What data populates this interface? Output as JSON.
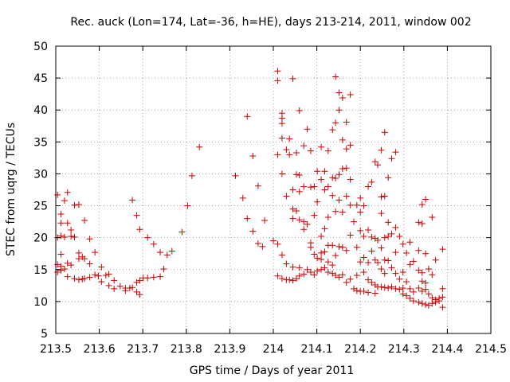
{
  "chart_data": {
    "type": "scatter",
    "title": "Rec. auck (Lon=174, Lat=-36, h=HE), days 213-214, 2011, window 002",
    "xlabel": "GPS time / Days of year 2011",
    "ylabel": "STEC from uqrg / TECUs",
    "xlim": [
      213.5,
      214.5
    ],
    "ylim": [
      5,
      50
    ],
    "x_ticks": [
      213.5,
      213.6,
      213.7,
      213.8,
      213.9,
      214.0,
      214.1,
      214.2,
      214.3,
      214.4,
      214.5
    ],
    "x_tick_labels": [
      "213.5",
      "213.6",
      "213.7",
      "213.8",
      "213.9",
      "214",
      "214.1",
      "214.2",
      "214.3",
      "214.4",
      "214.5"
    ],
    "y_ticks": [
      5,
      10,
      15,
      20,
      25,
      30,
      35,
      40,
      45,
      50
    ],
    "y_tick_labels": [
      "5",
      "10",
      "15",
      "20",
      "25",
      "30",
      "35",
      "40",
      "45",
      "50"
    ],
    "grid": true,
    "marker": "plus",
    "color": "#cc0000",
    "series": [
      {
        "points": [
          [
            213.504,
            26.7
          ],
          [
            213.504,
            20.0
          ],
          [
            213.504,
            15.8
          ],
          [
            213.504,
            14.6
          ],
          [
            213.512,
            23.7
          ],
          [
            213.512,
            22.3
          ],
          [
            213.512,
            20.3
          ],
          [
            213.512,
            17.4
          ],
          [
            213.512,
            15.5
          ],
          [
            213.512,
            14.9
          ],
          [
            213.52,
            25.8
          ],
          [
            213.52,
            20.1
          ],
          [
            213.52,
            15.1
          ],
          [
            213.527,
            27.1
          ],
          [
            213.527,
            22.3
          ],
          [
            213.527,
            16.0
          ],
          [
            213.527,
            13.9
          ],
          [
            213.535,
            21.2
          ],
          [
            213.535,
            20.2
          ],
          [
            213.535,
            15.7
          ],
          [
            213.543,
            25.1
          ],
          [
            213.543,
            20.1
          ],
          [
            213.543,
            13.6
          ],
          [
            213.553,
            25.2
          ],
          [
            213.553,
            17.6
          ],
          [
            213.553,
            16.7
          ],
          [
            213.553,
            13.4
          ],
          [
            213.561,
            17.0
          ],
          [
            213.561,
            13.5
          ],
          [
            213.566,
            22.7
          ],
          [
            213.566,
            16.7
          ],
          [
            213.566,
            13.6
          ],
          [
            213.578,
            19.8
          ],
          [
            213.578,
            15.9
          ],
          [
            213.578,
            13.8
          ],
          [
            213.59,
            17.7
          ],
          [
            213.59,
            14.2
          ],
          [
            213.598,
            14.0
          ],
          [
            213.605,
            15.4
          ],
          [
            213.605,
            13.1
          ],
          [
            213.615,
            14.1
          ],
          [
            213.622,
            14.3
          ],
          [
            213.622,
            12.5
          ],
          [
            213.634,
            13.3
          ],
          [
            213.634,
            12.0
          ],
          [
            213.648,
            12.4
          ],
          [
            213.66,
            12.1
          ],
          [
            213.66,
            11.7
          ],
          [
            213.67,
            12.1
          ],
          [
            213.676,
            25.9
          ],
          [
            213.676,
            12.2
          ],
          [
            213.686,
            23.5
          ],
          [
            213.686,
            13.0
          ],
          [
            213.686,
            11.5
          ],
          [
            213.693,
            21.3
          ],
          [
            213.693,
            13.3
          ],
          [
            213.693,
            11.1
          ],
          [
            213.701,
            13.7
          ],
          [
            213.711,
            20.0
          ],
          [
            213.711,
            13.7
          ],
          [
            213.725,
            19.0
          ],
          [
            213.725,
            13.8
          ],
          [
            213.74,
            17.7
          ],
          [
            213.74,
            13.9
          ],
          [
            213.748,
            15.1
          ],
          [
            213.756,
            17.3
          ],
          [
            213.767,
            17.9
          ],
          [
            213.79,
            20.9
          ],
          [
            213.803,
            25.0
          ],
          [
            213.813,
            29.7
          ],
          [
            213.83,
            34.2
          ],
          [
            213.913,
            29.7
          ],
          [
            213.93,
            26.2
          ],
          [
            213.94,
            39.0
          ],
          [
            213.94,
            23.0
          ],
          [
            213.953,
            32.8
          ],
          [
            213.953,
            21.0
          ],
          [
            213.965,
            28.1
          ],
          [
            213.965,
            19.1
          ],
          [
            213.975,
            18.6
          ],
          [
            213.98,
            22.7
          ],
          [
            214.0,
            19.5
          ],
          [
            214.01,
            46.1
          ],
          [
            214.01,
            44.6
          ],
          [
            214.01,
            33.0
          ],
          [
            214.01,
            19.0
          ],
          [
            214.01,
            14.0
          ],
          [
            214.02,
            39.5
          ],
          [
            214.02,
            38.7
          ],
          [
            214.02,
            37.9
          ],
          [
            214.02,
            35.6
          ],
          [
            214.02,
            30.0
          ],
          [
            214.02,
            17.3
          ],
          [
            214.02,
            13.6
          ],
          [
            214.03,
            33.8
          ],
          [
            214.03,
            26.5
          ],
          [
            214.03,
            15.9
          ],
          [
            214.03,
            13.4
          ],
          [
            214.037,
            35.5
          ],
          [
            214.037,
            33.0
          ],
          [
            214.037,
            13.4
          ],
          [
            214.045,
            44.9
          ],
          [
            214.045,
            27.5
          ],
          [
            214.045,
            24.5
          ],
          [
            214.045,
            23.0
          ],
          [
            214.045,
            15.4
          ],
          [
            214.045,
            13.3
          ],
          [
            214.053,
            33.3
          ],
          [
            214.053,
            29.9
          ],
          [
            214.053,
            24.2
          ],
          [
            214.053,
            13.6
          ],
          [
            214.06,
            39.9
          ],
          [
            214.06,
            29.8
          ],
          [
            214.06,
            27.2
          ],
          [
            214.06,
            22.8
          ],
          [
            214.06,
            15.3
          ],
          [
            214.06,
            14.0
          ],
          [
            214.07,
            34.4
          ],
          [
            214.07,
            28.0
          ],
          [
            214.07,
            22.5
          ],
          [
            214.07,
            21.3
          ],
          [
            214.07,
            14.3
          ],
          [
            214.078,
            37.0
          ],
          [
            214.078,
            22.1
          ],
          [
            214.078,
            15.0
          ],
          [
            214.086,
            33.6
          ],
          [
            214.086,
            27.9
          ],
          [
            214.086,
            19.2
          ],
          [
            214.086,
            18.5
          ],
          [
            214.086,
            14.6
          ],
          [
            214.094,
            28.0
          ],
          [
            214.094,
            23.5
          ],
          [
            214.094,
            17.4
          ],
          [
            214.094,
            14.2
          ],
          [
            214.101,
            30.4
          ],
          [
            214.101,
            25.6
          ],
          [
            214.101,
            16.8
          ],
          [
            214.101,
            14.8
          ],
          [
            214.11,
            34.2
          ],
          [
            214.11,
            29.1
          ],
          [
            214.11,
            20.2
          ],
          [
            214.11,
            17.6
          ],
          [
            214.11,
            16.6
          ],
          [
            214.11,
            15.0
          ],
          [
            214.118,
            30.4
          ],
          [
            214.118,
            27.5
          ],
          [
            214.118,
            21.4
          ],
          [
            214.118,
            17.8
          ],
          [
            214.118,
            15.3
          ],
          [
            214.126,
            33.6
          ],
          [
            214.126,
            28.0
          ],
          [
            214.126,
            23.2
          ],
          [
            214.126,
            18.8
          ],
          [
            214.126,
            16.2
          ],
          [
            214.126,
            14.6
          ],
          [
            214.136,
            36.9
          ],
          [
            214.136,
            29.4
          ],
          [
            214.136,
            26.6
          ],
          [
            214.136,
            18.8
          ],
          [
            214.136,
            15.7
          ],
          [
            214.136,
            14.4
          ],
          [
            214.143,
            45.2
          ],
          [
            214.143,
            38.0
          ],
          [
            214.143,
            29.3
          ],
          [
            214.143,
            24.1
          ],
          [
            214.143,
            17.2
          ],
          [
            214.143,
            14.1
          ],
          [
            214.151,
            42.7
          ],
          [
            214.151,
            40.0
          ],
          [
            214.151,
            29.9
          ],
          [
            214.151,
            25.9
          ],
          [
            214.151,
            18.6
          ],
          [
            214.151,
            13.8
          ],
          [
            214.159,
            41.9
          ],
          [
            214.159,
            35.3
          ],
          [
            214.159,
            30.8
          ],
          [
            214.159,
            24.0
          ],
          [
            214.159,
            18.5
          ],
          [
            214.159,
            14.2
          ],
          [
            214.168,
            38.1
          ],
          [
            214.168,
            33.9
          ],
          [
            214.168,
            30.9
          ],
          [
            214.168,
            26.5
          ],
          [
            214.168,
            18.0
          ],
          [
            214.168,
            13.0
          ],
          [
            214.177,
            42.4
          ],
          [
            214.177,
            34.5
          ],
          [
            214.177,
            29.1
          ],
          [
            214.177,
            25.1
          ],
          [
            214.177,
            20.4
          ],
          [
            214.177,
            13.5
          ],
          [
            214.185,
            22.5
          ],
          [
            214.185,
            12.0
          ],
          [
            214.192,
            25.1
          ],
          [
            214.192,
            18.5
          ],
          [
            214.192,
            14.1
          ],
          [
            214.192,
            11.7
          ],
          [
            214.2,
            26.2
          ],
          [
            214.2,
            24.0
          ],
          [
            214.2,
            21.1
          ],
          [
            214.2,
            16.2
          ],
          [
            214.2,
            11.6
          ],
          [
            214.208,
            25.0
          ],
          [
            214.208,
            20.2
          ],
          [
            214.208,
            16.9
          ],
          [
            214.208,
            14.6
          ],
          [
            214.208,
            11.6
          ],
          [
            214.218,
            28.0
          ],
          [
            214.218,
            21.2
          ],
          [
            214.218,
            16.1
          ],
          [
            214.218,
            13.4
          ],
          [
            214.218,
            11.4
          ],
          [
            214.226,
            28.7
          ],
          [
            214.226,
            20.1
          ],
          [
            214.226,
            17.9
          ],
          [
            214.226,
            13.0
          ],
          [
            214.234,
            31.9
          ],
          [
            214.234,
            19.9
          ],
          [
            214.234,
            16.5
          ],
          [
            214.234,
            12.6
          ],
          [
            214.234,
            11.3
          ],
          [
            214.24,
            31.4
          ],
          [
            214.24,
            19.6
          ],
          [
            214.24,
            16.1
          ],
          [
            214.24,
            12.3
          ],
          [
            214.248,
            33.7
          ],
          [
            214.248,
            26.4
          ],
          [
            214.248,
            23.8
          ],
          [
            214.248,
            18.4
          ],
          [
            214.248,
            15.1
          ],
          [
            214.248,
            12.3
          ],
          [
            214.256,
            36.5
          ],
          [
            214.256,
            26.5
          ],
          [
            214.256,
            20.0
          ],
          [
            214.256,
            16.5
          ],
          [
            214.256,
            14.4
          ],
          [
            214.256,
            12.2
          ],
          [
            214.264,
            29.4
          ],
          [
            214.264,
            22.4
          ],
          [
            214.264,
            20.2
          ],
          [
            214.264,
            16.4
          ],
          [
            214.264,
            12.1
          ],
          [
            214.272,
            32.4
          ],
          [
            214.272,
            20.6
          ],
          [
            214.272,
            15.3
          ],
          [
            214.272,
            12.3
          ],
          [
            214.281,
            33.4
          ],
          [
            214.281,
            21.6
          ],
          [
            214.281,
            17.7
          ],
          [
            214.281,
            14.4
          ],
          [
            214.281,
            12.0
          ],
          [
            214.29,
            20.2
          ],
          [
            214.29,
            13.5
          ],
          [
            214.29,
            11.9
          ],
          [
            214.298,
            19.0
          ],
          [
            214.298,
            14.6
          ],
          [
            214.298,
            12.1
          ],
          [
            214.298,
            11.2
          ],
          [
            214.306,
            17.6
          ],
          [
            214.306,
            13.1
          ],
          [
            214.306,
            10.9
          ],
          [
            214.314,
            19.3
          ],
          [
            214.314,
            15.8
          ],
          [
            214.314,
            12.0
          ],
          [
            214.314,
            10.5
          ],
          [
            214.322,
            16.3
          ],
          [
            214.322,
            11.5
          ],
          [
            214.322,
            10.1
          ],
          [
            214.334,
            22.4
          ],
          [
            214.334,
            18.0
          ],
          [
            214.334,
            14.9
          ],
          [
            214.334,
            12.1
          ],
          [
            214.334,
            9.9
          ],
          [
            214.342,
            25.2
          ],
          [
            214.342,
            22.2
          ],
          [
            214.342,
            14.5
          ],
          [
            214.342,
            13.2
          ],
          [
            214.342,
            11.6
          ],
          [
            214.342,
            9.7
          ],
          [
            214.35,
            26.0
          ],
          [
            214.35,
            17.5
          ],
          [
            214.35,
            12.9
          ],
          [
            214.35,
            11.9
          ],
          [
            214.35,
            9.5
          ],
          [
            214.357,
            15.1
          ],
          [
            214.357,
            11.2
          ],
          [
            214.357,
            9.4
          ],
          [
            214.365,
            23.2
          ],
          [
            214.365,
            14.2
          ],
          [
            214.365,
            10.6
          ],
          [
            214.365,
            9.7
          ],
          [
            214.373,
            16.5
          ],
          [
            214.373,
            10.3
          ],
          [
            214.373,
            9.9
          ],
          [
            214.381,
            10.5
          ],
          [
            214.381,
            10.1
          ],
          [
            214.389,
            18.2
          ],
          [
            214.389,
            12.0
          ],
          [
            214.389,
            10.7
          ],
          [
            214.389,
            9.1
          ]
        ]
      }
    ]
  }
}
